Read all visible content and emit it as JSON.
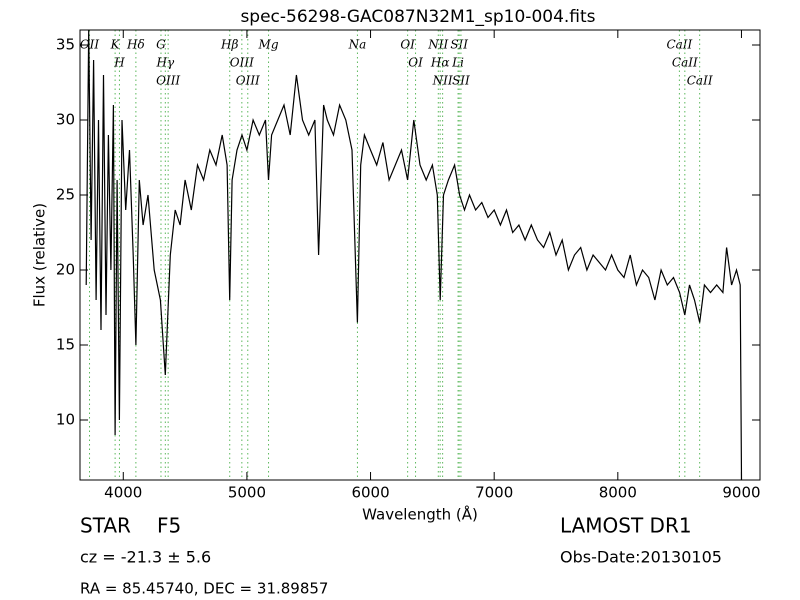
{
  "chart_data": {
    "type": "line",
    "title": "spec-56298-GAC087N32M1_sp10-004.fits",
    "x_label": "Wavelength (Å)",
    "y_label": "Flux (relative)",
    "xlim": [
      3650,
      9150
    ],
    "xticks": [
      4000,
      5000,
      6000,
      7000,
      8000,
      9000
    ],
    "ylim": [
      6,
      36
    ],
    "yticks": [
      10,
      15,
      20,
      25,
      30,
      35
    ],
    "color": "#000000",
    "x": [
      3700,
      3720,
      3740,
      3760,
      3780,
      3800,
      3820,
      3840,
      3860,
      3880,
      3900,
      3920,
      3934,
      3950,
      3969,
      3990,
      4020,
      4050,
      4080,
      4102,
      4130,
      4160,
      4200,
      4250,
      4300,
      4340,
      4380,
      4420,
      4460,
      4500,
      4550,
      4600,
      4650,
      4700,
      4750,
      4800,
      4840,
      4861,
      4880,
      4920,
      4960,
      5000,
      5050,
      5100,
      5150,
      5175,
      5200,
      5250,
      5300,
      5350,
      5400,
      5450,
      5500,
      5550,
      5580,
      5620,
      5650,
      5700,
      5750,
      5800,
      5850,
      5894,
      5920,
      5950,
      6000,
      6050,
      6100,
      6150,
      6200,
      6250,
      6300,
      6350,
      6400,
      6450,
      6500,
      6540,
      6563,
      6590,
      6630,
      6680,
      6720,
      6760,
      6800,
      6850,
      6900,
      6950,
      7000,
      7050,
      7100,
      7150,
      7200,
      7250,
      7300,
      7350,
      7400,
      7450,
      7500,
      7550,
      7600,
      7650,
      7700,
      7750,
      7800,
      7850,
      7900,
      7950,
      8000,
      8050,
      8100,
      8150,
      8200,
      8250,
      8300,
      8350,
      8400,
      8450,
      8500,
      8542,
      8580,
      8620,
      8662,
      8700,
      8750,
      8800,
      8850,
      8880,
      8920,
      8960,
      8990,
      9000
    ],
    "values": [
      19,
      36,
      22,
      34,
      18,
      30,
      16,
      33,
      17,
      29,
      20,
      31,
      9,
      26,
      10,
      30,
      24,
      28,
      21,
      15,
      26,
      23,
      25,
      20,
      18,
      13,
      21,
      24,
      23,
      26,
      24,
      27,
      26,
      28,
      27,
      29,
      27,
      18,
      26,
      28,
      29,
      28,
      30,
      29,
      30,
      26,
      29,
      30,
      31,
      29,
      33,
      30,
      29,
      30,
      21,
      31,
      30,
      29,
      31,
      30,
      28,
      16.5,
      27,
      29,
      28,
      27,
      28.5,
      26,
      27,
      28,
      26,
      30,
      27,
      26,
      27,
      25,
      18,
      25,
      26,
      27,
      25,
      24,
      25,
      24,
      24.5,
      23.5,
      24,
      23,
      24,
      22.5,
      23,
      22,
      23,
      22,
      21.5,
      22.5,
      21,
      22,
      20,
      21,
      21.5,
      20,
      21,
      20.5,
      20,
      21,
      20,
      19.5,
      21,
      19,
      20,
      19.5,
      18,
      20,
      19,
      19.5,
      18.5,
      17,
      19,
      18,
      16.5,
      19,
      18.5,
      19,
      18.5,
      21.5,
      19,
      20,
      19,
      6
    ],
    "line_color": "#5cb85c",
    "lines": [
      {
        "label": "OII",
        "wavelength": 3727
      },
      {
        "label": "K",
        "wavelength": 3934
      },
      {
        "label": "H",
        "wavelength": 3969
      },
      {
        "label": "Hδ",
        "wavelength": 4102
      },
      {
        "label": "G",
        "wavelength": 4305
      },
      {
        "label": "Hγ",
        "wavelength": 4340
      },
      {
        "label": "OIII",
        "wavelength": 4363
      },
      {
        "label": "Hβ",
        "wavelength": 4861
      },
      {
        "label": "OIII",
        "wavelength": 4959
      },
      {
        "label": "OIII",
        "wavelength": 5007
      },
      {
        "label": "Mg",
        "wavelength": 5175
      },
      {
        "label": "Na",
        "wavelength": 5894
      },
      {
        "label": "OI",
        "wavelength": 6300
      },
      {
        "label": "OI",
        "wavelength": 6364
      },
      {
        "label": "NII",
        "wavelength": 6548
      },
      {
        "label": "Hα",
        "wavelength": 6563
      },
      {
        "label": "NII",
        "wavelength": 6583
      },
      {
        "label": "Li",
        "wavelength": 6708
      },
      {
        "label": "SII",
        "wavelength": 6717
      },
      {
        "label": "SII",
        "wavelength": 6731
      },
      {
        "label": "CaII",
        "wavelength": 8498
      },
      {
        "label": "CaII",
        "wavelength": 8542
      },
      {
        "label": "CaII",
        "wavelength": 8662
      }
    ]
  },
  "info": {
    "class": "STAR",
    "subclass": "F5",
    "cz": "cz = -21.3 ± 5.6",
    "coords": "RA = 85.45740, DEC = 31.89857",
    "survey": "LAMOST DR1",
    "obs_date": "Obs-Date:20130105"
  }
}
